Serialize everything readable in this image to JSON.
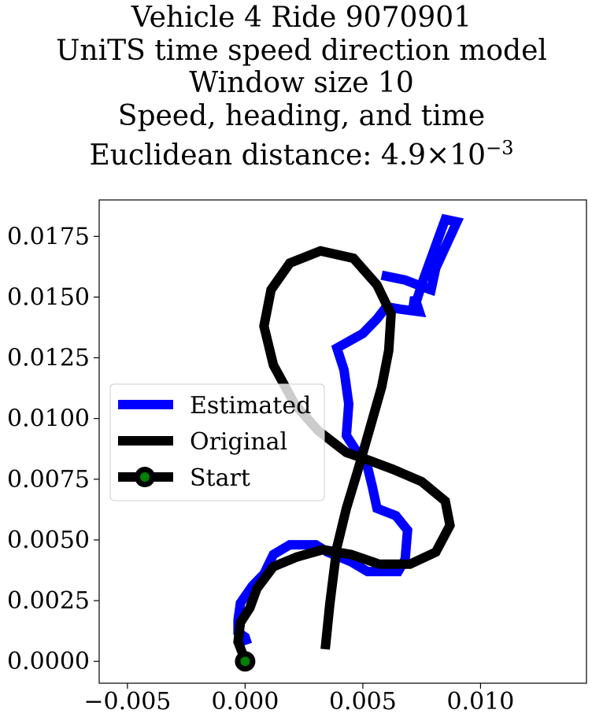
{
  "title_lines": [
    "Vehicle 4 Ride 9070901",
    "UniTS time speed direction model",
    "Window size 10",
    "Speed, heading, and time"
  ],
  "title_distance_prefix": "Euclidean distance: ",
  "title_distance_mantissa": "4.9",
  "title_distance_times": "×",
  "title_distance_base": "10",
  "title_distance_exponent": "−3",
  "chart_data": {
    "type": "line",
    "title": "Vehicle 4 Ride 9070901 / UniTS time speed direction model / Window size 10 / Speed, heading, and time / Euclidean distance: 4.9×10^-3",
    "xlabel": "",
    "ylabel": "",
    "xlim": [
      -0.0062,
      0.0145
    ],
    "ylim": [
      -0.0009,
      0.019
    ],
    "x_ticks": [
      -0.005,
      0.0,
      0.005,
      0.01
    ],
    "x_tick_labels": [
      "−0.005",
      "0.000",
      "0.005",
      "0.010"
    ],
    "y_ticks": [
      0.0,
      0.0025,
      0.005,
      0.0075,
      0.01,
      0.0125,
      0.015,
      0.0175
    ],
    "y_tick_labels": [
      "0.0000",
      "0.0025",
      "0.0050",
      "0.0075",
      "0.0100",
      "0.0125",
      "0.0150",
      "0.0175"
    ],
    "grid": false,
    "legend_position": "center-left",
    "series": [
      {
        "name": "Estimated",
        "color": "#0000ff",
        "points": [
          [
            0.0001,
            0.0007
          ],
          [
            0.0,
            0.001
          ],
          [
            -0.0003,
            0.0012
          ],
          [
            -0.0003,
            0.0017
          ],
          [
            -0.0002,
            0.0024
          ],
          [
            0.0003,
            0.0031
          ],
          [
            0.0008,
            0.0036
          ],
          [
            0.001,
            0.004
          ],
          [
            0.0012,
            0.0044
          ],
          [
            0.0019,
            0.0048
          ],
          [
            0.003,
            0.0048
          ],
          [
            0.0035,
            0.0045
          ],
          [
            0.0045,
            0.0041
          ],
          [
            0.0052,
            0.0037
          ],
          [
            0.0065,
            0.0037
          ],
          [
            0.0068,
            0.0042
          ],
          [
            0.0069,
            0.0054
          ],
          [
            0.0064,
            0.006
          ],
          [
            0.0056,
            0.0063
          ],
          [
            0.0054,
            0.0072
          ],
          [
            0.0052,
            0.008
          ],
          [
            0.0047,
            0.0087
          ],
          [
            0.0043,
            0.0093
          ],
          [
            0.0044,
            0.0106
          ],
          [
            0.0042,
            0.012
          ],
          [
            0.0039,
            0.0129
          ],
          [
            0.005,
            0.0135
          ],
          [
            0.0056,
            0.0141
          ],
          [
            0.006,
            0.0146
          ],
          [
            0.0066,
            0.0145
          ],
          [
            0.0074,
            0.0144
          ],
          [
            0.0072,
            0.015
          ],
          [
            0.0071,
            0.0143
          ],
          [
            0.0076,
            0.0158
          ],
          [
            0.0082,
            0.0174
          ],
          [
            0.0085,
            0.0182
          ],
          [
            0.009,
            0.0181
          ],
          [
            0.0081,
            0.0162
          ],
          [
            0.0079,
            0.0153
          ],
          [
            0.0076,
            0.0154
          ],
          [
            0.0068,
            0.0157
          ],
          [
            0.0058,
            0.0159
          ]
        ]
      },
      {
        "name": "Original",
        "color": "#000000",
        "points": [
          [
            0.0,
            0.0
          ],
          [
            -0.0001,
            0.0003
          ],
          [
            -0.0003,
            0.0008
          ],
          [
            -0.0002,
            0.0016
          ],
          [
            0.0002,
            0.0022
          ],
          [
            0.0005,
            0.003
          ],
          [
            0.0012,
            0.0039
          ],
          [
            0.0022,
            0.0043
          ],
          [
            0.0033,
            0.0046
          ],
          [
            0.0045,
            0.0044
          ],
          [
            0.0057,
            0.004
          ],
          [
            0.007,
            0.004
          ],
          [
            0.0081,
            0.0045
          ],
          [
            0.0087,
            0.0056
          ],
          [
            0.0085,
            0.0066
          ],
          [
            0.0075,
            0.0074
          ],
          [
            0.0063,
            0.0079
          ],
          [
            0.0052,
            0.0083
          ],
          [
            0.0043,
            0.0086
          ],
          [
            0.0031,
            0.0095
          ],
          [
            0.0021,
            0.0106
          ],
          [
            0.0012,
            0.0122
          ],
          [
            0.0008,
            0.0138
          ],
          [
            0.0011,
            0.0153
          ],
          [
            0.0019,
            0.0164
          ],
          [
            0.0032,
            0.0169
          ],
          [
            0.0046,
            0.0166
          ],
          [
            0.0056,
            0.0155
          ],
          [
            0.0062,
            0.0143
          ],
          [
            0.0061,
            0.0128
          ],
          [
            0.0058,
            0.0113
          ],
          [
            0.0053,
            0.0096
          ],
          [
            0.0048,
            0.0079
          ],
          [
            0.0043,
            0.0063
          ],
          [
            0.0039,
            0.0047
          ],
          [
            0.0036,
            0.0024
          ],
          [
            0.0034,
            0.0005
          ]
        ]
      },
      {
        "name": "Start",
        "color": "#000000",
        "marker_face_color": "#008000",
        "points": [
          [
            0.0,
            0.0
          ]
        ]
      }
    ],
    "legend_entries": [
      "Estimated",
      "Original",
      "Start"
    ]
  }
}
